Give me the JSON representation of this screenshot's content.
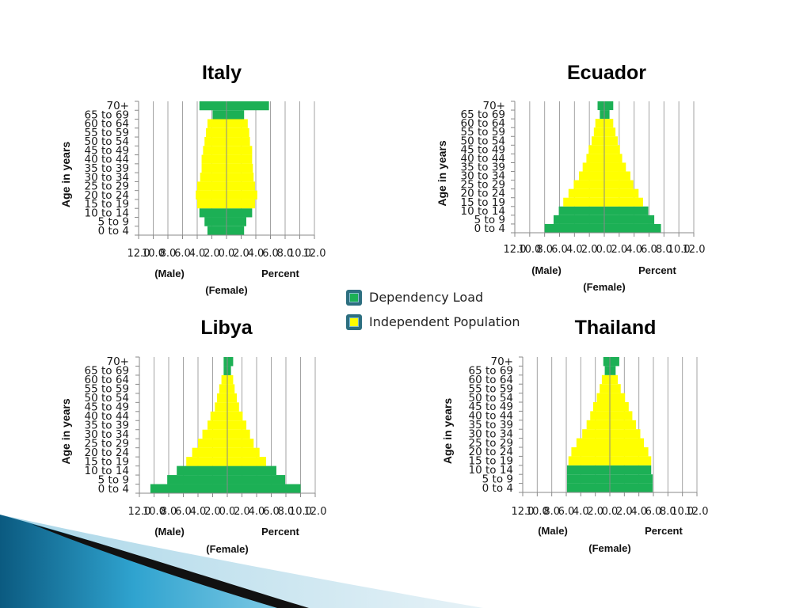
{
  "legend": {
    "position": "center",
    "items": [
      {
        "label": "Dependency Load",
        "color": "#1cb055"
      },
      {
        "label": "Independent Population",
        "color": "#ffff00"
      }
    ]
  },
  "chart_data": [
    {
      "type": "bar",
      "title": "Italy",
      "ylabel": "Age in years",
      "xlabel": "Percent",
      "xlim": [
        -12,
        12
      ],
      "xtick_values": [
        -12,
        -10,
        -8,
        -6,
        -4,
        -2,
        0,
        2,
        4,
        6,
        8,
        10,
        12
      ],
      "xtick_labels": [
        "12.0",
        "10.0",
        "8.0",
        "6.0",
        "4.0",
        "2.0",
        "0.0",
        "2.0",
        "4.0",
        "6.0",
        "8.0",
        "10.0",
        "12.0"
      ],
      "grid": true,
      "categories": [
        "0 to 4",
        "5 to 9",
        "10 to 14",
        "15 to 19",
        "20 to 24",
        "25 to 29",
        "30 to 34",
        "35 to 39",
        "40 to 44",
        "45 to 49",
        "50 to 54",
        "55 to 59",
        "60 to 64",
        "65 to 69",
        "70+"
      ],
      "legend_index": [
        0,
        0,
        0,
        1,
        1,
        1,
        1,
        1,
        1,
        1,
        1,
        1,
        1,
        0,
        0
      ],
      "series": [
        {
          "name": "(Male)",
          "values": [
            2.6,
            3.0,
            3.7,
            4.0,
            4.2,
            4.0,
            3.6,
            3.4,
            3.4,
            3.2,
            3.0,
            2.8,
            2.6,
            1.9,
            3.7
          ]
        },
        {
          "name": "(Female)",
          "values": [
            2.4,
            2.7,
            3.5,
            3.9,
            4.2,
            3.9,
            3.7,
            3.6,
            3.5,
            3.5,
            3.2,
            3.1,
            2.9,
            2.4,
            5.8
          ]
        }
      ]
    },
    {
      "type": "bar",
      "title": "Ecuador",
      "ylabel": "Age in years",
      "xlabel": "Percent",
      "xlim": [
        -12,
        12
      ],
      "xtick_values": [
        -12,
        -10,
        -8,
        -6,
        -4,
        -2,
        0,
        2,
        4,
        6,
        8,
        10,
        12
      ],
      "xtick_labels": [
        "12.0",
        "10.0",
        "8.0",
        "6.0",
        "4.0",
        "2.0",
        "0.0",
        "2.0",
        "4.0",
        "6.0",
        "8.0",
        "10.0",
        "12.0"
      ],
      "grid": true,
      "categories": [
        "0 to 4",
        "5 to 9",
        "10 to 14",
        "15 to 19",
        "20 to 24",
        "25 to 29",
        "30 to 34",
        "35 to 39",
        "40 to 44",
        "45 to 49",
        "50 to 54",
        "55 to 59",
        "60 to 64",
        "65 to 69",
        "70+"
      ],
      "legend_index": [
        0,
        0,
        0,
        1,
        1,
        1,
        1,
        1,
        1,
        1,
        1,
        1,
        1,
        0,
        0
      ],
      "series": [
        {
          "name": "(Male)",
          "values": [
            8.0,
            6.8,
            6.1,
            5.5,
            4.8,
            4.1,
            3.4,
            2.9,
            2.4,
            2.1,
            1.7,
            1.4,
            1.2,
            0.6,
            0.9
          ]
        },
        {
          "name": "(Female)",
          "values": [
            7.6,
            6.7,
            5.9,
            5.2,
            4.6,
            3.9,
            3.5,
            2.9,
            2.4,
            2.1,
            1.8,
            1.5,
            1.2,
            0.7,
            1.2
          ]
        }
      ]
    },
    {
      "type": "bar",
      "title": "Libya",
      "ylabel": "Age in years",
      "xlabel": "Percent",
      "xlim": [
        -12,
        12
      ],
      "xtick_values": [
        -12,
        -10,
        -8,
        -6,
        -4,
        -2,
        0,
        2,
        4,
        6,
        8,
        10,
        12
      ],
      "xtick_labels": [
        "12.0",
        "10.0",
        "8.0",
        "6.0",
        "4.0",
        "2.0",
        "0.0",
        "2.0",
        "4.0",
        "6.0",
        "8.0",
        "10.0",
        "12.0"
      ],
      "grid": true,
      "categories": [
        "0 to 4",
        "5 to 9",
        "10 to 14",
        "15 to 19",
        "20 to 24",
        "25 to 29",
        "30 to 34",
        "35 to 39",
        "40 to 44",
        "45 to 49",
        "50 to 54",
        "55 to 59",
        "60 to 64",
        "65 to 69",
        "70+"
      ],
      "legend_index": [
        0,
        0,
        0,
        1,
        1,
        1,
        1,
        1,
        1,
        1,
        1,
        1,
        1,
        0,
        0
      ],
      "series": [
        {
          "name": "(Male)",
          "values": [
            10.5,
            8.2,
            6.9,
            5.6,
            4.8,
            4.0,
            3.4,
            2.7,
            2.3,
            1.7,
            1.4,
            1.1,
            0.8,
            0.5,
            0.5
          ]
        },
        {
          "name": "(Female)",
          "values": [
            10.0,
            7.9,
            6.7,
            5.3,
            4.4,
            3.6,
            3.1,
            2.6,
            2.1,
            1.6,
            1.3,
            1.0,
            0.8,
            0.5,
            0.8
          ]
        }
      ]
    },
    {
      "type": "bar",
      "title": "Thailand",
      "ylabel": "Age in years",
      "xlabel": "Percent",
      "xlim": [
        -12,
        12
      ],
      "xtick_values": [
        -12,
        -10,
        -8,
        -6,
        -4,
        -2,
        0,
        2,
        4,
        6,
        8,
        10,
        12
      ],
      "xtick_labels": [
        "12.0",
        "10.0",
        "8.0",
        "6.0",
        "4.0",
        "2.0",
        "0.0",
        "2.0",
        "4.0",
        "6.0",
        "8.0",
        "10.0",
        "12.0"
      ],
      "grid": true,
      "categories": [
        "0 to 4",
        "5 to 9",
        "10 to 14",
        "15 to 19",
        "20 to 24",
        "25 to 29",
        "30 to 34",
        "35 to 39",
        "40 to 44",
        "45 to 49",
        "50 to 54",
        "55 to 59",
        "60 to 64",
        "65 to 69",
        "70+"
      ],
      "legend_index": [
        0,
        0,
        0,
        1,
        1,
        1,
        1,
        1,
        1,
        1,
        1,
        1,
        1,
        0,
        0
      ],
      "series": [
        {
          "name": "(Male)",
          "values": [
            5.9,
            5.9,
            5.9,
            5.7,
            5.3,
            4.6,
            3.8,
            3.2,
            2.7,
            2.3,
            1.8,
            1.4,
            1.1,
            0.7,
            0.9
          ]
        },
        {
          "name": "(Female)",
          "values": [
            5.9,
            5.9,
            5.7,
            5.7,
            5.3,
            4.7,
            4.2,
            3.6,
            3.1,
            2.6,
            2.1,
            1.5,
            1.1,
            0.8,
            1.3
          ]
        }
      ]
    }
  ]
}
